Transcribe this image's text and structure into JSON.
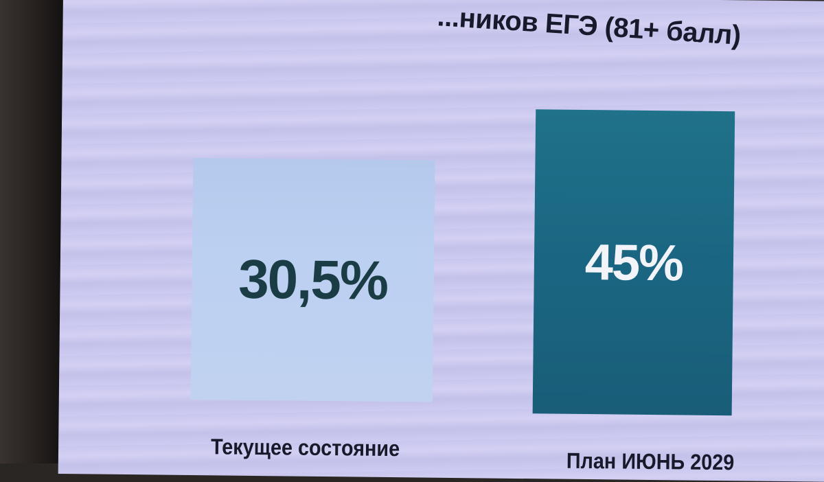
{
  "chart_data": {
    "type": "bar",
    "title": "...ников ЕГЭ (81+ балл)",
    "categories": [
      "Текущее состояние",
      "План ИЮНЬ 2029"
    ],
    "values": [
      30.5,
      45
    ],
    "data_labels": [
      "30,5%",
      "45%"
    ],
    "colors": [
      "#b8ccee",
      "#1b6a85"
    ],
    "grid": false
  }
}
